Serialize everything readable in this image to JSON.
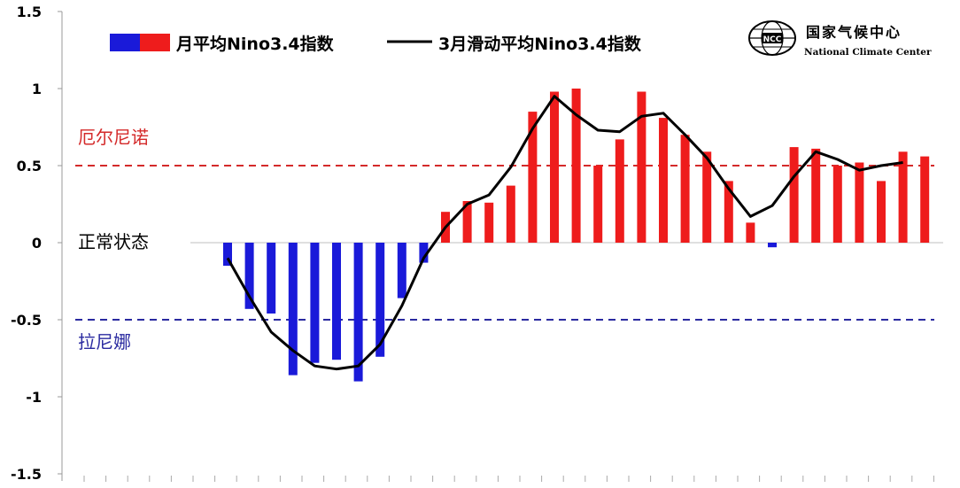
{
  "chart_data": {
    "type": "bar",
    "y_ticks": [
      "1.5",
      "1",
      "0.5",
      "0",
      "-0.5",
      "-1",
      "-1.5"
    ],
    "ylim": [
      -1.5,
      1.5
    ],
    "grid": false,
    "legend": {
      "placement": "top",
      "monthly_label": "月平均Nino3.4指数",
      "running_label": "3月滑动平均Nino3.4指数"
    },
    "thresholds": {
      "el_nino": {
        "value": 0.5,
        "label": "厄尔尼诺",
        "color": "#d42a2a"
      },
      "la_nina": {
        "value": -0.5,
        "label": "拉尼娜",
        "color": "#2a2aa0"
      },
      "neutral_label": "正常状态"
    },
    "colors": {
      "positive": "#ee1c1c",
      "negative": "#1a1ad9",
      "line": "#000000"
    },
    "series": [
      {
        "name": "月平均Nino3.4指数",
        "values": [
          -0.15,
          -0.43,
          -0.46,
          -0.86,
          -0.78,
          -0.76,
          -0.9,
          -0.74,
          -0.36,
          -0.13,
          0.2,
          0.27,
          0.26,
          0.37,
          0.85,
          0.98,
          1.0,
          0.5,
          0.67,
          0.98,
          0.81,
          0.7,
          0.59,
          0.4,
          0.13,
          -0.03,
          0.62,
          0.61,
          0.5,
          0.52,
          0.4,
          0.59,
          0.56
        ]
      },
      {
        "name": "3月滑动平均Nino3.4指数",
        "values": [
          -0.1,
          -0.35,
          -0.58,
          -0.7,
          -0.8,
          -0.82,
          -0.8,
          -0.66,
          -0.41,
          -0.1,
          0.1,
          0.25,
          0.31,
          0.49,
          0.74,
          0.95,
          0.83,
          0.73,
          0.72,
          0.82,
          0.84,
          0.7,
          0.55,
          0.35,
          0.17,
          0.24,
          0.43,
          0.59,
          0.54,
          0.47,
          0.5,
          0.52,
          null
        ]
      }
    ]
  },
  "logo": {
    "name_cn": "国家气候中心",
    "name_en": "National Climate Center",
    "emblem_text": "NCC"
  }
}
